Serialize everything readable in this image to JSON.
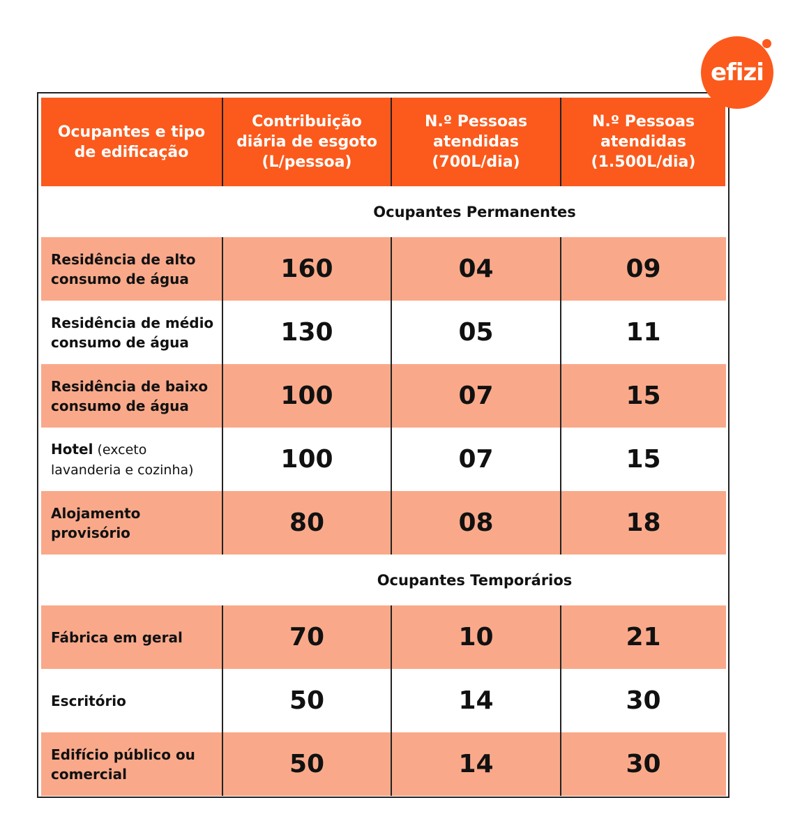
{
  "logo": "efizi",
  "table": {
    "header": [
      "Ocupantes e tipo de edificação",
      "Contribuição diária de esgoto (L/pessoa)",
      "N.º Pessoas atendidas (700L/dia)",
      "N.º Pessoas atendidas (1.500L/dia)"
    ],
    "sections": [
      {
        "title": "Ocupantes Permanentes",
        "rows": [
          {
            "label": "Residência de alto consumo de água",
            "values": [
              "160",
              "04",
              "09"
            ]
          },
          {
            "label": "Residência de médio consumo de água",
            "values": [
              "130",
              "05",
              "11"
            ]
          },
          {
            "label": "Residência de baixo consumo de água",
            "values": [
              "100",
              "07",
              "15"
            ]
          },
          {
            "label": "Hotel",
            "note": "(exceto lavanderia e cozinha)",
            "values": [
              "100",
              "07",
              "15"
            ]
          },
          {
            "label": "Alojamento provisório",
            "values": [
              "80",
              "08",
              "18"
            ]
          }
        ]
      },
      {
        "title": "Ocupantes Temporários",
        "rows": [
          {
            "label": "Fábrica em geral",
            "values": [
              "70",
              "10",
              "21"
            ]
          },
          {
            "label": "Escritório",
            "values": [
              "50",
              "14",
              "30"
            ]
          },
          {
            "label": "Edifício público ou comercial",
            "values": [
              "50",
              "14",
              "30"
            ]
          }
        ]
      }
    ]
  }
}
